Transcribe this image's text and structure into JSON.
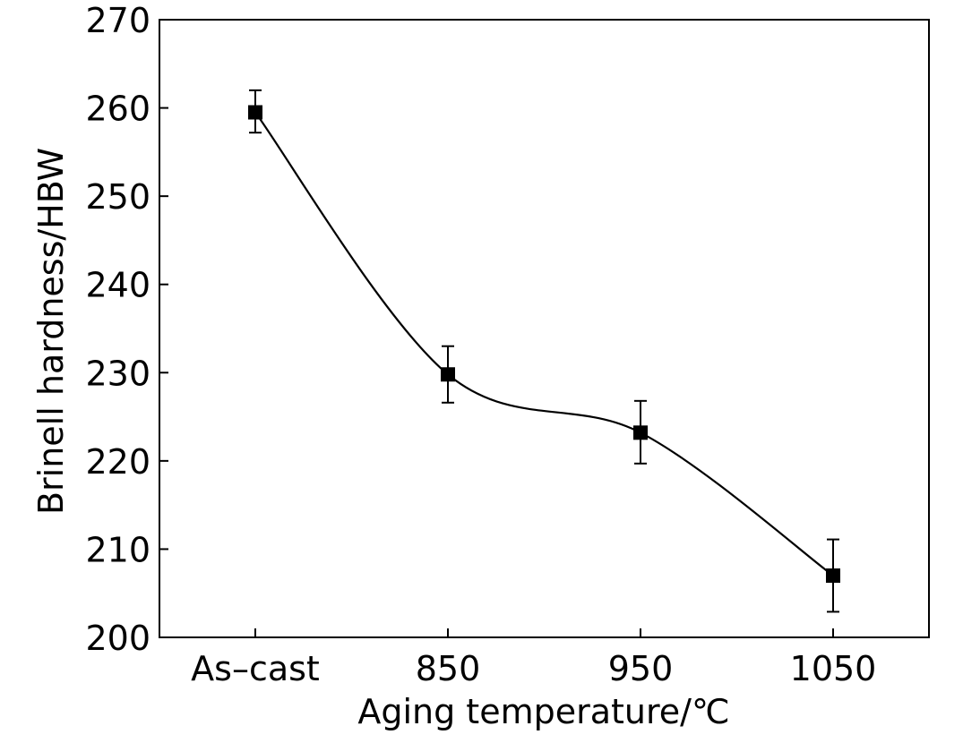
{
  "chart_data": {
    "type": "line",
    "xlabel": "Aging temperature/℃",
    "ylabel": "Brinell hardness/HBW",
    "categories": [
      "As–cast",
      "850",
      "950",
      "1050"
    ],
    "yticks": [
      200,
      210,
      220,
      230,
      240,
      250,
      260,
      270
    ],
    "ylim": [
      200,
      270
    ],
    "grid": false,
    "legend": "none",
    "marker": "square",
    "smooth": true,
    "series": [
      {
        "values": [
          259.5,
          229.8,
          223.2,
          207.0
        ],
        "error_low": [
          257.2,
          226.6,
          219.7,
          202.9
        ],
        "error_high": [
          262.0,
          233.0,
          226.8,
          211.1
        ]
      }
    ]
  }
}
